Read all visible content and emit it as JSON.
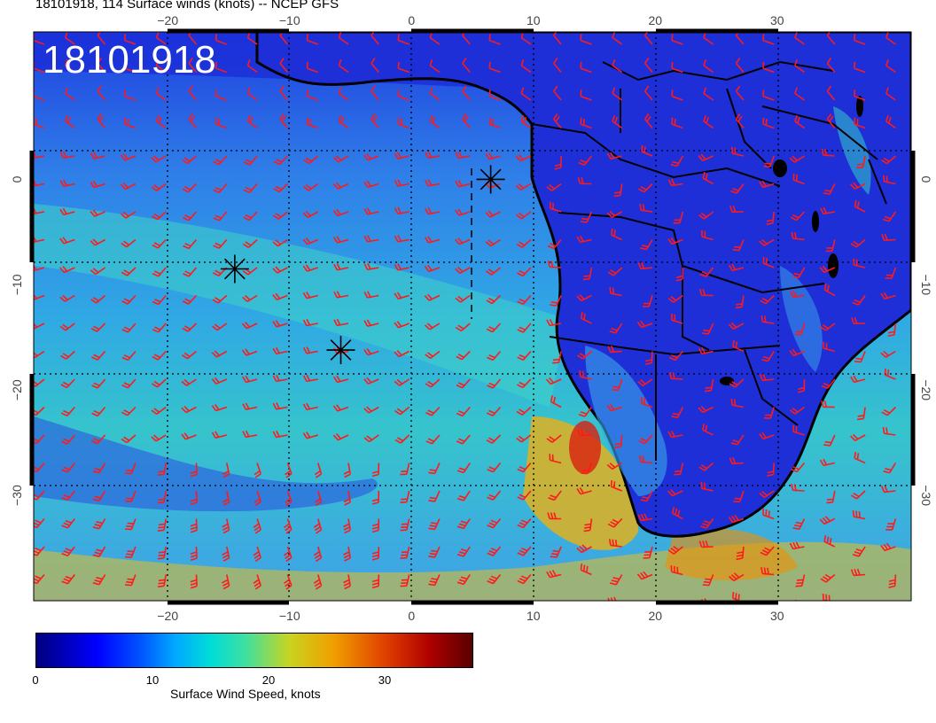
{
  "title": "18101918, 114 Surface winds (knots) -- NCEP GFS",
  "stamp": "18101918",
  "lon_ticks": [
    "-20",
    "-10",
    "0",
    "10",
    "20",
    "30"
  ],
  "lat_ticks": [
    "0",
    "-10",
    "-20",
    "-30"
  ],
  "colorbar": {
    "label": "Surface Wind Speed, knots",
    "ticks": [
      "0",
      "10",
      "20",
      "30"
    ],
    "range": [
      0,
      37
    ],
    "colors": [
      "#00007f",
      "#0000ff",
      "#00aaff",
      "#00dcd8",
      "#c8d420",
      "#f0a000",
      "#b00000",
      "#5a0000"
    ]
  },
  "map": {
    "extent_lon": [
      -31,
      41
    ],
    "extent_lat": [
      14,
      -40
    ],
    "barb_color": "#ff1a1a",
    "markers_lonlat": [
      [
        -14.5,
        -8.5
      ],
      [
        -5.8,
        -16.2
      ],
      [
        6.5,
        0
      ]
    ]
  }
}
